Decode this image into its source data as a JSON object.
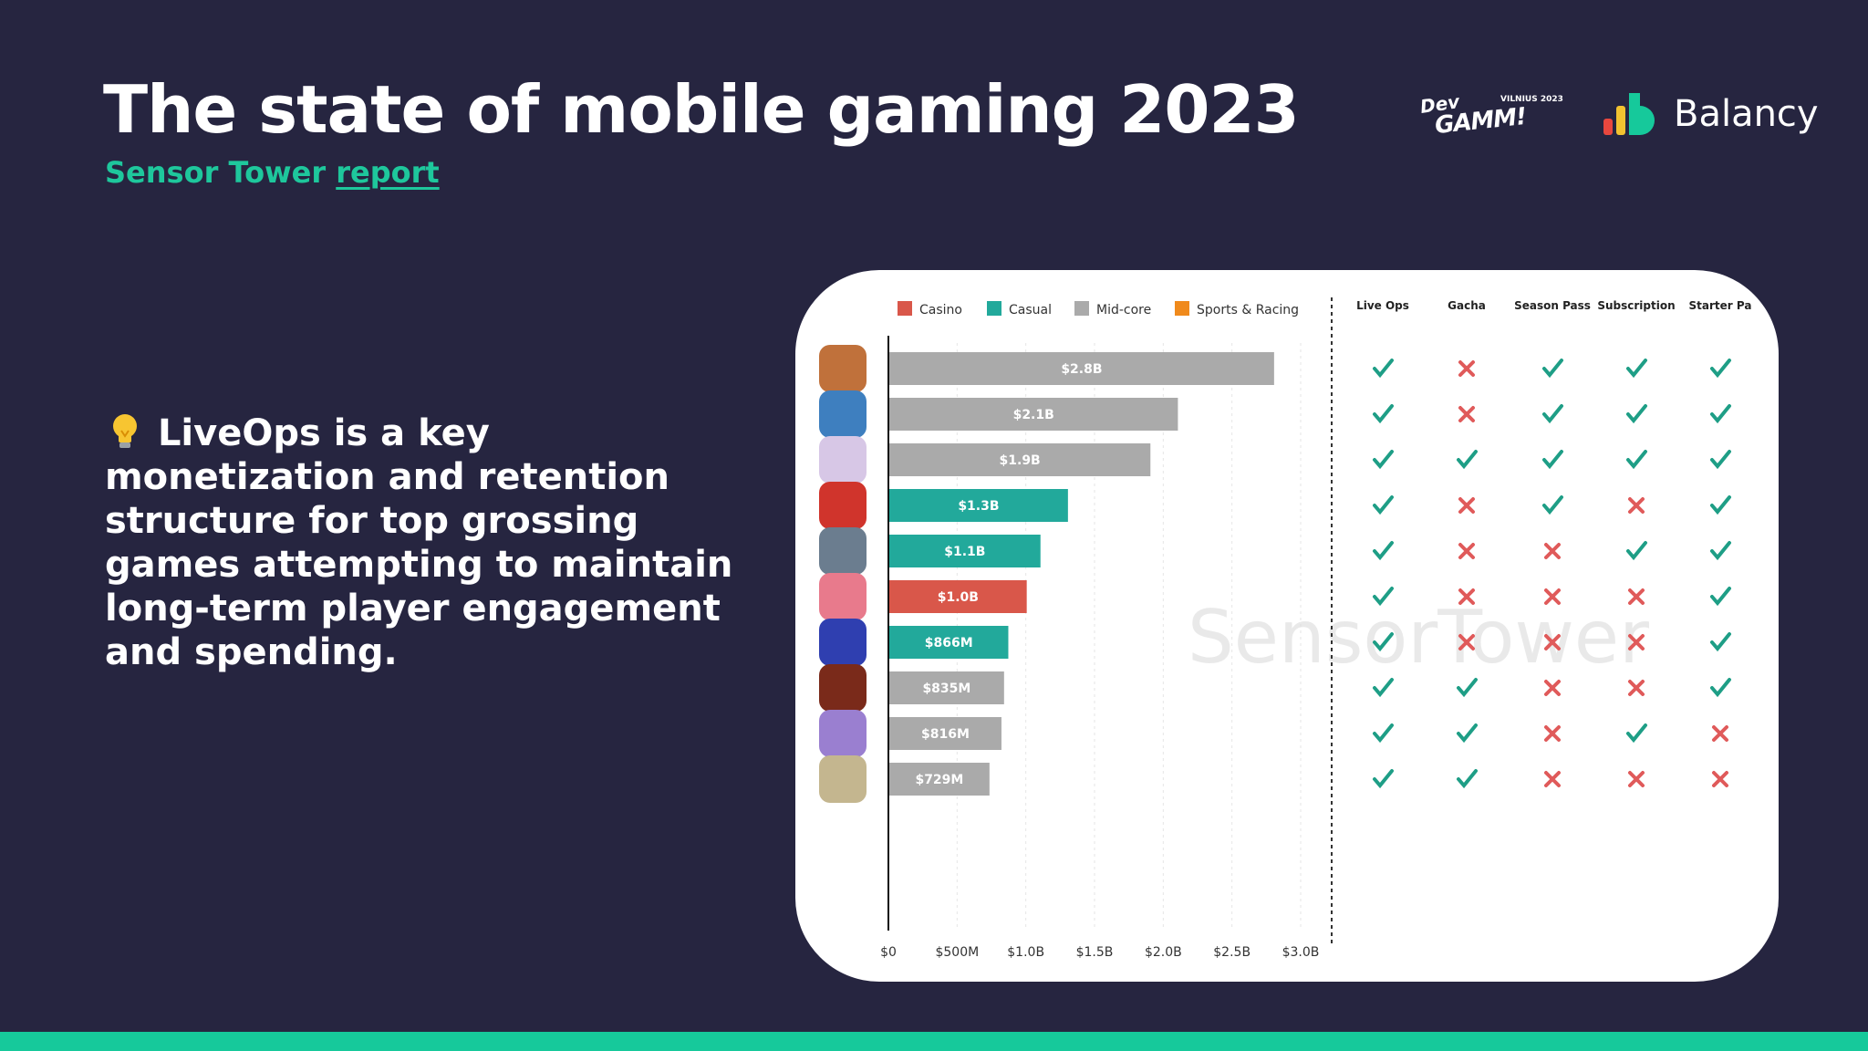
{
  "slide": {
    "title": "The state of mobile gaming 2023",
    "subtitle_prefix": "Sensor Tower",
    "subtitle_link": "report",
    "body_text": "LiveOps is a key monetization and retention structure for top grossing games attempting to maintain long-term player engagement and spending."
  },
  "logos": {
    "devgamm": {
      "dev": "Dev",
      "gamm": "GAMM!",
      "event": "VILNIUS 2023"
    },
    "balancy": {
      "wordmark": "Balancy"
    }
  },
  "colors": {
    "background": "#262540",
    "accent": "#1ec79c",
    "casino": "#d9574a",
    "casual": "#22a99b",
    "midcore": "#aaaaaa",
    "sports_racing": "#f08a1c",
    "check": "#1e9e86",
    "cross": "#e05a5a"
  },
  "chart_data": {
    "type": "bar",
    "orientation": "horizontal",
    "watermark": "SensorTower",
    "legend": [
      "Casino",
      "Casual",
      "Mid-core",
      "Sports & Racing"
    ],
    "legend_colors": [
      "casino",
      "casual",
      "midcore",
      "sports_racing"
    ],
    "x_ticks": [
      "$0",
      "$500M",
      "$1.0B",
      "$1.5B",
      "$2.0B",
      "$2.5B",
      "$3.0B"
    ],
    "xlim": [
      0,
      3.0
    ],
    "unit": "billions USD",
    "grid": true,
    "bars": [
      {
        "icon": "game-icon-1",
        "value": 2.8,
        "label": "$2.8B",
        "genre": "midcore"
      },
      {
        "icon": "game-icon-2",
        "value": 2.1,
        "label": "$2.1B",
        "genre": "midcore"
      },
      {
        "icon": "game-icon-3",
        "value": 1.9,
        "label": "$1.9B",
        "genre": "midcore"
      },
      {
        "icon": "game-icon-4",
        "value": 1.3,
        "label": "$1.3B",
        "genre": "casual"
      },
      {
        "icon": "game-icon-5",
        "value": 1.1,
        "label": "$1.1B",
        "genre": "casual"
      },
      {
        "icon": "game-icon-6",
        "value": 1.0,
        "label": "$1.0B",
        "genre": "casino"
      },
      {
        "icon": "game-icon-7",
        "value": 0.866,
        "label": "$866M",
        "genre": "casual"
      },
      {
        "icon": "game-icon-8",
        "value": 0.835,
        "label": "$835M",
        "genre": "midcore"
      },
      {
        "icon": "game-icon-9",
        "value": 0.816,
        "label": "$816M",
        "genre": "midcore"
      },
      {
        "icon": "game-icon-10",
        "value": 0.729,
        "label": "$729M",
        "genre": "midcore"
      }
    ],
    "features": {
      "columns": [
        "Live Ops",
        "Gacha",
        "Season Pass",
        "Subscription",
        "Starter Pa"
      ],
      "rows": [
        [
          true,
          false,
          true,
          true,
          true
        ],
        [
          true,
          false,
          true,
          true,
          true
        ],
        [
          true,
          true,
          true,
          true,
          true
        ],
        [
          true,
          false,
          true,
          false,
          true
        ],
        [
          true,
          false,
          false,
          true,
          true
        ],
        [
          true,
          false,
          false,
          false,
          true
        ],
        [
          true,
          false,
          false,
          false,
          true
        ],
        [
          true,
          true,
          false,
          false,
          true
        ],
        [
          true,
          true,
          false,
          true,
          false
        ],
        [
          true,
          true,
          false,
          false,
          false
        ]
      ]
    }
  }
}
